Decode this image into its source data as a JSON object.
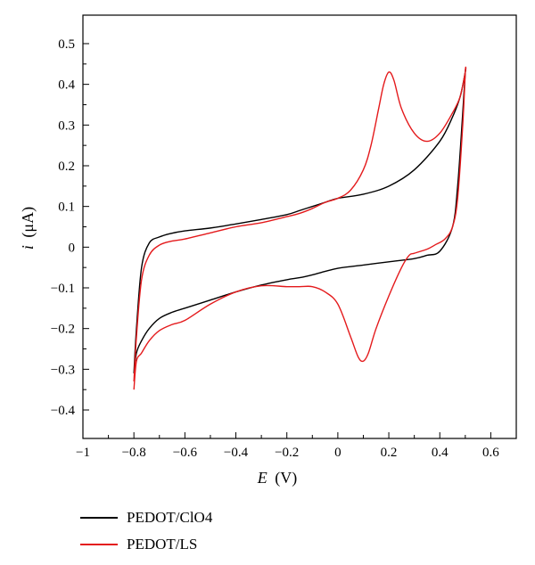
{
  "chart_data": {
    "type": "line",
    "xlabel": {
      "symbol": "E",
      "unit": "(V)"
    },
    "ylabel": {
      "symbol": "i",
      "unit": "(μA)"
    },
    "xlim": [
      -1,
      0.7
    ],
    "ylim": [
      -0.47,
      0.57
    ],
    "xticks": [
      -1,
      -0.8,
      -0.6,
      -0.4,
      -0.2,
      0,
      0.2,
      0.4,
      0.6
    ],
    "xtick_labels": [
      "−1",
      "−0.8",
      "−0.6",
      "−0.4",
      "−0.2",
      "0",
      "0.2",
      "0.4",
      "0.6"
    ],
    "yticks": [
      -0.4,
      -0.3,
      -0.2,
      -0.1,
      0,
      0.1,
      0.2,
      0.3,
      0.4,
      0.5
    ],
    "ytick_labels": [
      "−0.4",
      "−0.3",
      "−0.2",
      "−0.1",
      "0",
      "0.1",
      "0.2",
      "0.3",
      "0.4",
      "0.5"
    ],
    "grid": false,
    "legend_position": "below",
    "series": [
      {
        "name": "PEDOT/ClO4",
        "color": "#000000",
        "x": [
          -0.8,
          -0.79,
          -0.77,
          -0.74,
          -0.7,
          -0.66,
          -0.6,
          -0.5,
          -0.4,
          -0.3,
          -0.2,
          -0.15,
          -0.1,
          -0.05,
          0,
          0.1,
          0.2,
          0.3,
          0.4,
          0.45,
          0.48,
          0.5,
          0.5,
          0.49,
          0.47,
          0.45,
          0.4,
          0.35,
          0.3,
          0.2,
          0.1,
          0,
          -0.1,
          -0.15,
          -0.2,
          -0.3,
          -0.4,
          -0.5,
          -0.6,
          -0.65,
          -0.7,
          -0.74,
          -0.77,
          -0.79,
          -0.8
        ],
        "y": [
          -0.31,
          -0.2,
          -0.05,
          0.01,
          0.025,
          0.033,
          0.04,
          0.047,
          0.057,
          0.068,
          0.08,
          0.09,
          0.1,
          0.11,
          0.12,
          0.13,
          0.15,
          0.19,
          0.26,
          0.32,
          0.37,
          0.43,
          0.43,
          0.33,
          0.15,
          0.05,
          -0.01,
          -0.02,
          -0.028,
          -0.036,
          -0.044,
          -0.052,
          -0.068,
          -0.075,
          -0.08,
          -0.093,
          -0.11,
          -0.13,
          -0.15,
          -0.16,
          -0.175,
          -0.2,
          -0.23,
          -0.26,
          -0.31
        ]
      },
      {
        "name": "PEDOT/LS",
        "color": "#e41a1c",
        "x": [
          -0.8,
          -0.79,
          -0.77,
          -0.74,
          -0.7,
          -0.65,
          -0.6,
          -0.5,
          -0.4,
          -0.3,
          -0.2,
          -0.15,
          -0.1,
          -0.05,
          0,
          0.05,
          0.1,
          0.13,
          0.16,
          0.18,
          0.2,
          0.22,
          0.25,
          0.3,
          0.35,
          0.4,
          0.45,
          0.48,
          0.5,
          0.5,
          0.49,
          0.47,
          0.45,
          0.42,
          0.38,
          0.35,
          0.3,
          0.28,
          0.25,
          0.2,
          0.15,
          0.12,
          0.1,
          0.08,
          0.05,
          0,
          -0.05,
          -0.1,
          -0.15,
          -0.2,
          -0.3,
          -0.4,
          -0.5,
          -0.6,
          -0.65,
          -0.7,
          -0.74,
          -0.77,
          -0.79,
          -0.8
        ],
        "y": [
          -0.33,
          -0.22,
          -0.08,
          -0.02,
          0.005,
          0.015,
          0.02,
          0.035,
          0.05,
          0.06,
          0.075,
          0.083,
          0.095,
          0.11,
          0.12,
          0.14,
          0.19,
          0.25,
          0.34,
          0.4,
          0.43,
          0.41,
          0.34,
          0.28,
          0.26,
          0.28,
          0.33,
          0.37,
          0.43,
          0.43,
          0.3,
          0.12,
          0.05,
          0.02,
          0.005,
          -0.005,
          -0.015,
          -0.02,
          -0.05,
          -0.12,
          -0.2,
          -0.26,
          -0.28,
          -0.27,
          -0.22,
          -0.14,
          -0.11,
          -0.097,
          -0.097,
          -0.097,
          -0.095,
          -0.11,
          -0.14,
          -0.18,
          -0.19,
          -0.205,
          -0.23,
          -0.26,
          -0.28,
          -0.35
        ]
      }
    ]
  }
}
